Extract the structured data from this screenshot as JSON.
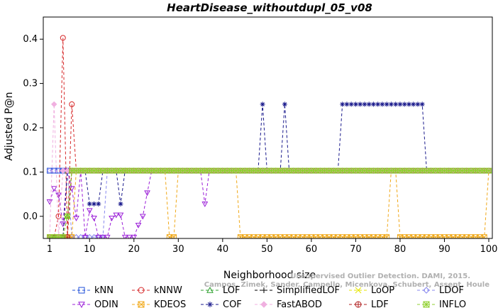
{
  "chart_data": {
    "type": "line",
    "title": "HeartDisease_withoutdupl_05_v08",
    "xlabel": "Neighborhood size",
    "ylabel": "Adjusted P@n",
    "xlim": [
      1,
      100
    ],
    "ylim": [
      -0.05,
      0.45
    ],
    "xticks": [
      1,
      10,
      20,
      30,
      40,
      50,
      60,
      70,
      80,
      90,
      100
    ],
    "yticks": [
      0.0,
      0.1,
      0.2,
      0.3,
      0.4
    ],
    "ytick_labels": [
      "0.0",
      "0.1",
      "0.2",
      "0.3",
      "0.4"
    ],
    "grid": false,
    "legend_position": "bottom",
    "credit": {
      "line1": "Unsupervised Outlier Detection. DAMI, 2015.",
      "line2": "Campos, Zimek, Sander, Campello, Micenkova, Schubert, Assent, Houle"
    },
    "series": [
      {
        "name": "kNN",
        "color": "#1f4fd8",
        "marker": "square",
        "points": [
          [
            1,
            0.103
          ],
          [
            2,
            0.103
          ],
          [
            3,
            0.103
          ],
          [
            100,
            0.103
          ]
        ]
      },
      {
        "name": "kNNW",
        "color": "#d62728",
        "marker": "circle",
        "points": [
          [
            1,
            -0.047
          ],
          [
            2,
            -0.047
          ],
          [
            3,
            0.0
          ],
          [
            4,
            0.403
          ],
          [
            5,
            -0.047
          ],
          [
            6,
            0.253
          ],
          [
            7,
            0.103
          ],
          [
            100,
            0.103
          ]
        ]
      },
      {
        "name": "LOF",
        "color": "#2ca02c",
        "marker": "triangle-up",
        "points": [
          [
            1,
            -0.047
          ],
          [
            2,
            -0.047
          ],
          [
            3,
            -0.047
          ],
          [
            4,
            -0.047
          ],
          [
            5,
            0.0
          ],
          [
            6,
            0.103
          ],
          [
            100,
            0.103
          ]
        ]
      },
      {
        "name": "SimplifiedLOF",
        "color": "#000000",
        "marker": "plus",
        "points": [
          [
            1,
            -0.047
          ],
          [
            2,
            -0.047
          ],
          [
            3,
            -0.047
          ],
          [
            4,
            -0.047
          ],
          [
            5,
            0.103
          ],
          [
            100,
            0.103
          ]
        ]
      },
      {
        "name": "LoOP",
        "color": "#e6e600",
        "marker": "x",
        "points": [
          [
            1,
            -0.047
          ],
          [
            2,
            -0.047
          ],
          [
            3,
            -0.047
          ],
          [
            4,
            -0.047
          ],
          [
            5,
            0.103
          ],
          [
            100,
            0.103
          ]
        ]
      },
      {
        "name": "LDOF",
        "color": "#8888ee",
        "marker": "diamond",
        "points": [
          [
            1,
            0.103
          ],
          [
            2,
            0.103
          ],
          [
            3,
            0.103
          ],
          [
            4,
            0.103
          ],
          [
            5,
            0.103
          ],
          [
            6,
            -0.047
          ],
          [
            7,
            -0.047
          ],
          [
            8,
            -0.047
          ],
          [
            9,
            -0.047
          ],
          [
            10,
            -0.047
          ],
          [
            11,
            -0.047
          ],
          [
            12,
            -0.047
          ],
          [
            13,
            -0.047
          ],
          [
            14,
            0.103
          ],
          [
            100,
            0.103
          ]
        ]
      },
      {
        "name": "ODIN",
        "color": "#9b1fd8",
        "marker": "triangle-down",
        "points": [
          [
            1,
            0.033
          ],
          [
            2,
            0.063
          ],
          [
            3,
            0.048
          ],
          [
            4,
            -0.017
          ],
          [
            5,
            0.103
          ],
          [
            6,
            0.063
          ],
          [
            7,
            -0.004
          ],
          [
            8,
            0.103
          ],
          [
            9,
            -0.047
          ],
          [
            10,
            0.013
          ],
          [
            11,
            -0.004
          ],
          [
            12,
            -0.047
          ],
          [
            13,
            -0.047
          ],
          [
            14,
            -0.047
          ],
          [
            15,
            -0.004
          ],
          [
            16,
            0.003
          ],
          [
            17,
            0.003
          ],
          [
            18,
            -0.047
          ],
          [
            19,
            -0.047
          ],
          [
            20,
            -0.047
          ],
          [
            21,
            -0.02
          ],
          [
            22,
            0.0
          ],
          [
            23,
            0.053
          ],
          [
            24,
            0.103
          ],
          [
            35,
            0.103
          ],
          [
            36,
            0.028
          ],
          [
            37,
            0.103
          ],
          [
            100,
            0.103
          ]
        ]
      },
      {
        "name": "KDEOS",
        "color": "#f0a818",
        "marker": "square-x",
        "points": [
          [
            1,
            -0.047
          ],
          [
            2,
            -0.047
          ],
          [
            3,
            -0.047
          ],
          [
            4,
            -0.047
          ],
          [
            5,
            -0.047
          ],
          [
            6,
            -0.047
          ],
          [
            7,
            0.103
          ],
          [
            27,
            0.103
          ],
          [
            28,
            -0.047
          ],
          [
            29,
            -0.047
          ],
          [
            30,
            0.103
          ],
          [
            43,
            0.103
          ],
          [
            44,
            -0.047
          ],
          [
            45,
            -0.047
          ],
          [
            46,
            -0.047
          ],
          [
            47,
            -0.047
          ],
          [
            48,
            -0.047
          ],
          [
            49,
            -0.047
          ],
          [
            50,
            -0.047
          ],
          [
            51,
            -0.047
          ],
          [
            52,
            -0.047
          ],
          [
            53,
            -0.047
          ],
          [
            54,
            -0.047
          ],
          [
            55,
            -0.047
          ],
          [
            56,
            -0.047
          ],
          [
            57,
            -0.047
          ],
          [
            58,
            -0.047
          ],
          [
            59,
            -0.047
          ],
          [
            60,
            -0.047
          ],
          [
            61,
            -0.047
          ],
          [
            62,
            -0.047
          ],
          [
            63,
            -0.047
          ],
          [
            64,
            -0.047
          ],
          [
            65,
            -0.047
          ],
          [
            66,
            -0.047
          ],
          [
            67,
            -0.047
          ],
          [
            68,
            -0.047
          ],
          [
            69,
            -0.047
          ],
          [
            70,
            -0.047
          ],
          [
            71,
            -0.047
          ],
          [
            72,
            -0.047
          ],
          [
            73,
            -0.047
          ],
          [
            74,
            -0.047
          ],
          [
            75,
            -0.047
          ],
          [
            76,
            -0.047
          ],
          [
            77,
            -0.047
          ],
          [
            78,
            0.103
          ],
          [
            79,
            0.103
          ],
          [
            80,
            -0.047
          ],
          [
            81,
            -0.047
          ],
          [
            82,
            -0.047
          ],
          [
            83,
            -0.047
          ],
          [
            84,
            -0.047
          ],
          [
            85,
            -0.047
          ],
          [
            86,
            -0.047
          ],
          [
            87,
            -0.047
          ],
          [
            88,
            -0.047
          ],
          [
            89,
            -0.047
          ],
          [
            90,
            -0.047
          ],
          [
            91,
            -0.047
          ],
          [
            92,
            -0.047
          ],
          [
            93,
            -0.047
          ],
          [
            94,
            -0.047
          ],
          [
            95,
            -0.047
          ],
          [
            96,
            -0.047
          ],
          [
            97,
            -0.047
          ],
          [
            98,
            -0.047
          ],
          [
            99,
            -0.047
          ],
          [
            100,
            0.103
          ]
        ]
      },
      {
        "name": "COF",
        "color": "#1a1a8c",
        "marker": "asterisk",
        "points": [
          [
            1,
            -0.047
          ],
          [
            2,
            -0.047
          ],
          [
            3,
            -0.047
          ],
          [
            4,
            -0.047
          ],
          [
            5,
            0.103
          ],
          [
            9,
            0.103
          ],
          [
            10,
            0.028
          ],
          [
            11,
            0.028
          ],
          [
            12,
            0.028
          ],
          [
            13,
            0.103
          ],
          [
            16,
            0.103
          ],
          [
            17,
            0.028
          ],
          [
            18,
            0.103
          ],
          [
            48,
            0.103
          ],
          [
            49,
            0.253
          ],
          [
            50,
            0.103
          ],
          [
            53,
            0.103
          ],
          [
            54,
            0.253
          ],
          [
            55,
            0.103
          ],
          [
            66,
            0.103
          ],
          [
            67,
            0.253
          ],
          [
            68,
            0.253
          ],
          [
            69,
            0.253
          ],
          [
            70,
            0.253
          ],
          [
            71,
            0.253
          ],
          [
            72,
            0.253
          ],
          [
            73,
            0.253
          ],
          [
            74,
            0.253
          ],
          [
            75,
            0.253
          ],
          [
            76,
            0.253
          ],
          [
            77,
            0.253
          ],
          [
            78,
            0.253
          ],
          [
            79,
            0.253
          ],
          [
            80,
            0.253
          ],
          [
            81,
            0.253
          ],
          [
            82,
            0.253
          ],
          [
            83,
            0.253
          ],
          [
            84,
            0.253
          ],
          [
            85,
            0.253
          ],
          [
            86,
            0.103
          ],
          [
            100,
            0.103
          ]
        ]
      },
      {
        "name": "FastABOD",
        "color": "#f0b0e0",
        "marker": "diamond-filled",
        "points": [
          [
            1,
            -0.047
          ],
          [
            2,
            0.253
          ],
          [
            3,
            -0.047
          ],
          [
            4,
            0.103
          ],
          [
            100,
            0.103
          ]
        ]
      },
      {
        "name": "LDF",
        "color": "#b02020",
        "marker": "circle-plus",
        "points": [
          [
            1,
            -0.047
          ],
          [
            2,
            -0.047
          ],
          [
            3,
            -0.047
          ],
          [
            4,
            -0.047
          ],
          [
            5,
            -0.047
          ],
          [
            6,
            0.103
          ],
          [
            100,
            0.103
          ]
        ]
      },
      {
        "name": "INFLO",
        "color": "#90d030",
        "marker": "square-cross",
        "points": [
          [
            1,
            -0.047
          ],
          [
            2,
            -0.047
          ],
          [
            3,
            -0.047
          ],
          [
            4,
            -0.047
          ],
          [
            5,
            0.0
          ],
          [
            6,
            0.103
          ],
          [
            100,
            0.103
          ]
        ]
      }
    ]
  }
}
